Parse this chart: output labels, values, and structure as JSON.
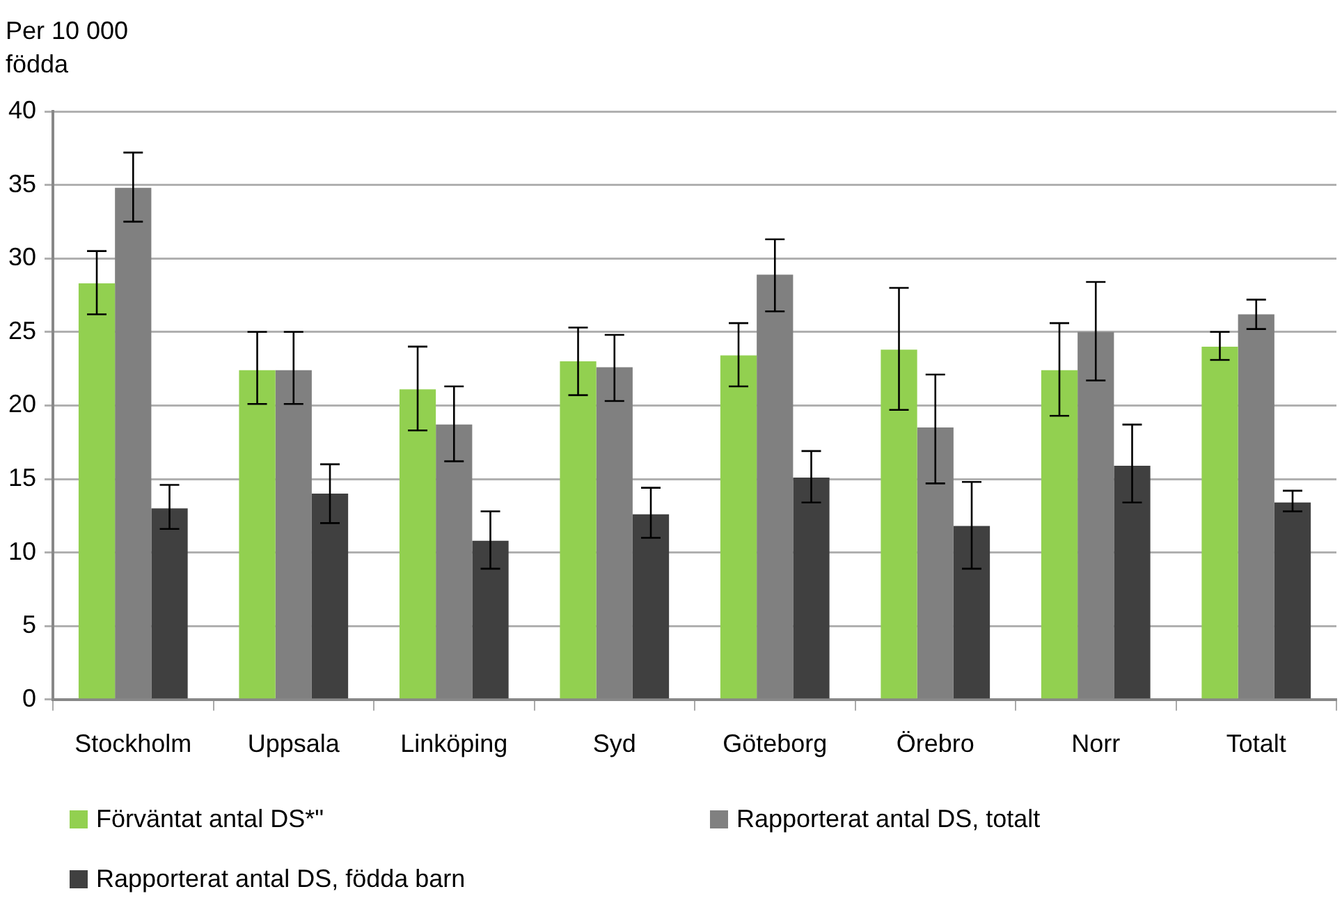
{
  "chart_data": {
    "type": "bar",
    "ylabel": "Per 10 000\nfödda",
    "categories": [
      "Stockholm",
      "Uppsala",
      "Linköping",
      "Syd",
      "Göteborg",
      "Örebro",
      "Norr",
      "Totalt"
    ],
    "series": [
      {
        "name": "Förväntat antal DS*\"",
        "color": "#92d050",
        "values": [
          28.3,
          22.4,
          21.1,
          23.0,
          23.4,
          23.8,
          22.4,
          24.0
        ],
        "errors": [
          [
            26.2,
            30.5
          ],
          [
            20.1,
            25.0
          ],
          [
            18.3,
            24.0
          ],
          [
            20.7,
            25.3
          ],
          [
            21.3,
            25.6
          ],
          [
            19.7,
            28.0
          ],
          [
            19.3,
            25.6
          ],
          [
            23.1,
            25.0
          ]
        ]
      },
      {
        "name": "Rapporterat antal DS, totalt",
        "color": "#808080",
        "values": [
          34.8,
          22.4,
          18.7,
          22.6,
          28.9,
          18.5,
          25.0,
          26.2
        ],
        "errors": [
          [
            32.5,
            37.2
          ],
          [
            20.1,
            25.0
          ],
          [
            16.2,
            21.3
          ],
          [
            20.3,
            24.8
          ],
          [
            26.4,
            31.3
          ],
          [
            14.7,
            22.1
          ],
          [
            21.7,
            28.4
          ],
          [
            25.2,
            27.2
          ]
        ]
      },
      {
        "name": "Rapporterat antal DS, födda barn",
        "color": "#404040",
        "values": [
          13.0,
          14.0,
          10.8,
          12.6,
          15.1,
          11.8,
          15.9,
          13.4
        ],
        "errors": [
          [
            11.6,
            14.6
          ],
          [
            12.0,
            16.0
          ],
          [
            8.9,
            12.8
          ],
          [
            11.0,
            14.4
          ],
          [
            13.4,
            16.9
          ],
          [
            8.9,
            14.8
          ],
          [
            13.4,
            18.7
          ],
          [
            12.8,
            14.2
          ]
        ]
      }
    ],
    "ylim": [
      0,
      40
    ],
    "yticks": [
      0,
      5,
      10,
      15,
      20,
      25,
      30,
      35,
      40
    ],
    "grid": "y",
    "legend": "bottom"
  }
}
